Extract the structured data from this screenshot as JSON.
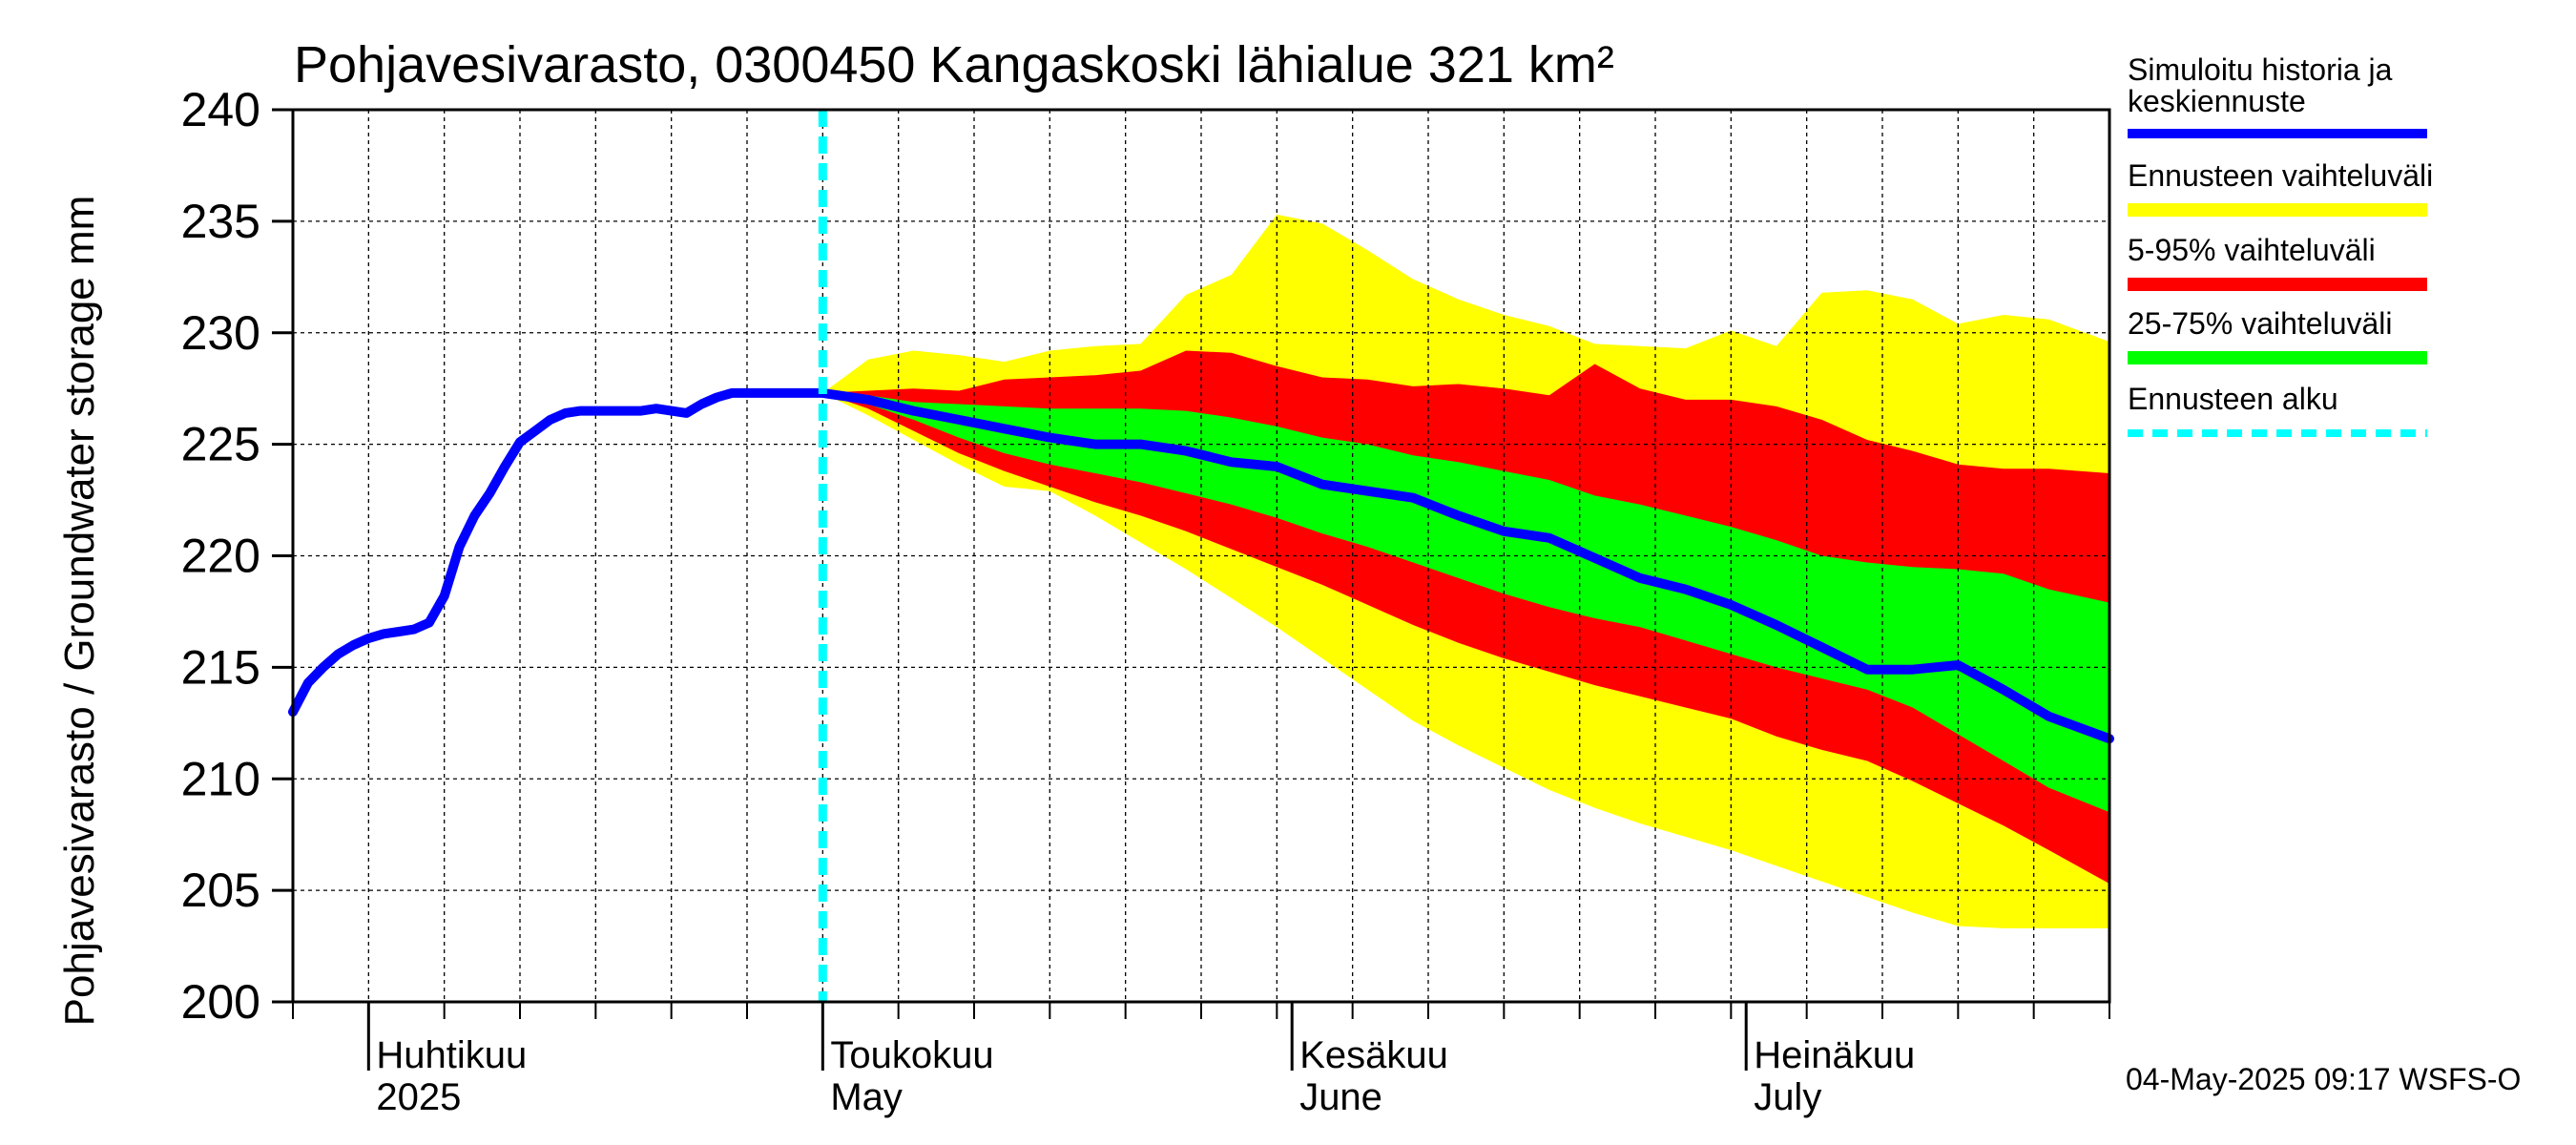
{
  "chart_data": {
    "type": "area",
    "title": "Pohjavesivarasto, 0300450 Kangaskoski lähialue 321 km²",
    "ylabel": "Pohjavesivarasto / Groundwater storage   mm",
    "ylim": [
      200,
      240
    ],
    "yticks": [
      200,
      205,
      210,
      215,
      220,
      225,
      230,
      235,
      240
    ],
    "xlim_day": [
      -5,
      115
    ],
    "month_ticks": [
      {
        "day": 0,
        "fi": "Huhtikuu",
        "en": "2025"
      },
      {
        "day": 30,
        "fi": "Toukokuu",
        "en": "May"
      },
      {
        "day": 61,
        "fi": "Kesäkuu",
        "en": "June"
      },
      {
        "day": 91,
        "fi": "Heinäkuu",
        "en": "July"
      }
    ],
    "week_ticks": [
      -5,
      0,
      5,
      10,
      15,
      20,
      25,
      30,
      35,
      40,
      45,
      50,
      55,
      60,
      65,
      70,
      75,
      80,
      85,
      90,
      95,
      100,
      105,
      110,
      115
    ],
    "forecast_start_day": 30,
    "x_note": "x = day offset from 1 April 2025",
    "series": [
      {
        "name": "Ennusteen vaihteluväli",
        "color": "#ffff00",
        "x": [
          30,
          33,
          36,
          39,
          42,
          45,
          48,
          51,
          54,
          57,
          60,
          63,
          66,
          69,
          72,
          75,
          78,
          81,
          84,
          87,
          90,
          93,
          96,
          99,
          102,
          105,
          108,
          111,
          115
        ],
        "upper": [
          227.3,
          228.8,
          229.2,
          229.0,
          228.7,
          229.2,
          229.4,
          229.5,
          231.7,
          232.6,
          235.3,
          234.9,
          233.7,
          232.4,
          231.5,
          230.8,
          230.3,
          229.5,
          229.4,
          229.3,
          230.1,
          229.4,
          231.8,
          231.9,
          231.5,
          230.4,
          230.8,
          230.6,
          229.6
        ],
        "lower": [
          227.3,
          226.3,
          225.2,
          224.1,
          223.1,
          222.9,
          221.8,
          220.6,
          219.4,
          218.1,
          216.8,
          215.4,
          214.0,
          212.6,
          211.5,
          210.5,
          209.5,
          208.7,
          208.0,
          207.4,
          206.8,
          206.1,
          205.4,
          204.7,
          204.0,
          203.4,
          203.3,
          203.3,
          203.3
        ]
      },
      {
        "name": "5-95% vaihteluväli",
        "color": "#ff0000",
        "x": [
          30,
          33,
          36,
          39,
          42,
          45,
          48,
          51,
          54,
          57,
          60,
          63,
          66,
          69,
          72,
          75,
          78,
          81,
          84,
          87,
          90,
          93,
          96,
          99,
          102,
          105,
          108,
          111,
          115
        ],
        "upper": [
          227.3,
          227.4,
          227.5,
          227.4,
          227.9,
          228.0,
          228.1,
          228.3,
          229.2,
          229.1,
          228.5,
          228.0,
          227.9,
          227.6,
          227.7,
          227.5,
          227.2,
          228.6,
          227.5,
          227.0,
          227.0,
          226.7,
          226.1,
          225.2,
          224.7,
          224.1,
          223.9,
          223.9,
          223.7
        ],
        "lower": [
          227.3,
          226.6,
          225.6,
          224.6,
          223.8,
          223.1,
          222.4,
          221.8,
          221.1,
          220.3,
          219.5,
          218.7,
          217.8,
          216.9,
          216.1,
          215.4,
          214.8,
          214.2,
          213.7,
          213.2,
          212.7,
          211.9,
          211.3,
          210.8,
          209.9,
          208.9,
          207.9,
          206.8,
          205.3
        ]
      },
      {
        "name": "25-75% vaihteluväli",
        "color": "#00ff00",
        "x": [
          30,
          33,
          36,
          39,
          42,
          45,
          48,
          51,
          54,
          57,
          60,
          63,
          66,
          69,
          72,
          75,
          78,
          81,
          84,
          87,
          90,
          93,
          96,
          99,
          102,
          105,
          108,
          111,
          115
        ],
        "upper": [
          227.3,
          227.2,
          226.9,
          226.8,
          226.7,
          226.6,
          226.6,
          226.6,
          226.5,
          226.2,
          225.8,
          225.3,
          225.0,
          224.5,
          224.2,
          223.8,
          223.4,
          222.7,
          222.3,
          221.8,
          221.3,
          220.7,
          220.0,
          219.7,
          219.5,
          219.4,
          219.2,
          218.5,
          217.9
        ],
        "lower": [
          227.3,
          226.8,
          226.1,
          225.3,
          224.6,
          224.1,
          223.7,
          223.3,
          222.8,
          222.3,
          221.7,
          221.0,
          220.4,
          219.7,
          219.0,
          218.3,
          217.7,
          217.2,
          216.8,
          216.2,
          215.6,
          215.0,
          214.5,
          214.0,
          213.2,
          212.0,
          210.8,
          209.6,
          208.5
        ]
      },
      {
        "name": "Simuloitu historia ja keskiennuste",
        "color": "#0000ff",
        "x": [
          -5,
          -4,
          -3,
          -2,
          -1,
          0,
          1,
          2,
          3,
          4,
          5,
          6,
          7,
          8,
          9,
          10,
          11,
          12,
          13,
          14,
          15,
          16,
          17,
          18,
          19,
          20,
          21,
          22,
          23,
          24,
          25,
          26,
          27,
          28,
          29,
          30,
          33,
          36,
          39,
          42,
          45,
          48,
          51,
          54,
          57,
          60,
          63,
          66,
          69,
          72,
          75,
          78,
          81,
          84,
          87,
          90,
          93,
          96,
          99,
          102,
          105,
          108,
          111,
          115
        ],
        "y": [
          213.0,
          214.3,
          215.0,
          215.6,
          216.0,
          216.3,
          216.5,
          216.6,
          216.7,
          217.0,
          218.2,
          220.4,
          221.8,
          222.8,
          224.0,
          225.1,
          225.6,
          226.1,
          226.4,
          226.5,
          226.5,
          226.5,
          226.5,
          226.5,
          226.6,
          226.5,
          226.4,
          226.8,
          227.1,
          227.3,
          227.3,
          227.3,
          227.3,
          227.3,
          227.3,
          227.3,
          227.0,
          226.5,
          226.1,
          225.7,
          225.3,
          225.0,
          225.0,
          224.7,
          224.2,
          224.0,
          223.2,
          222.9,
          222.6,
          221.8,
          221.1,
          220.8,
          219.9,
          219.0,
          218.5,
          217.8,
          216.9,
          215.9,
          214.9,
          214.9,
          215.1,
          214.0,
          212.8,
          211.8
        ]
      }
    ],
    "legend": [
      {
        "label": "Simuloitu historia ja keskiennuste",
        "color": "#0000ff",
        "style": "solid"
      },
      {
        "label": "Ennusteen vaihteluväli",
        "color": "#ffff00",
        "style": "solid"
      },
      {
        "label": "5-95% vaihteluväli",
        "color": "#ff0000",
        "style": "solid"
      },
      {
        "label": "25-75% vaihteluväli",
        "color": "#00ff00",
        "style": "solid"
      },
      {
        "label": "Ennusteen alku",
        "color": "#00ffff",
        "style": "dashed"
      }
    ],
    "legend_position": "right"
  },
  "legend_text": {
    "sim_line1": "Simuloitu historia ja",
    "sim_line2": "keskiennuste",
    "range": "Ennusteen vaihteluväli",
    "p5_95": "5-95% vaihteluväli",
    "p25_75": "25-75% vaihteluväli",
    "start": "Ennusteen alku"
  },
  "footer": "04-May-2025 09:17 WSFS-O"
}
